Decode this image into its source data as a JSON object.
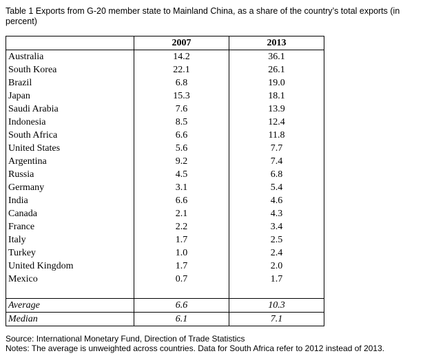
{
  "caption": "Table 1 Exports from G-20 member state to Mainland China, as a share of the country’s total exports (in percent)",
  "chart_data": {
    "type": "table",
    "title": "Table 1 Exports from G-20 member state to Mainland China, as a share of the country’s total exports (in percent)",
    "columns": [
      "",
      "2007",
      "2013"
    ],
    "rows": [
      {
        "country": "Australia",
        "y2007": "14.2",
        "y2013": "36.1"
      },
      {
        "country": "South Korea",
        "y2007": "22.1",
        "y2013": "26.1"
      },
      {
        "country": "Brazil",
        "y2007": "6.8",
        "y2013": "19.0"
      },
      {
        "country": "Japan",
        "y2007": "15.3",
        "y2013": "18.1"
      },
      {
        "country": "Saudi Arabia",
        "y2007": "7.6",
        "y2013": "13.9"
      },
      {
        "country": "Indonesia",
        "y2007": "8.5",
        "y2013": "12.4"
      },
      {
        "country": "South Africa",
        "y2007": "6.6",
        "y2013": "11.8"
      },
      {
        "country": "United States",
        "y2007": "5.6",
        "y2013": "7.7"
      },
      {
        "country": "Argentina",
        "y2007": "9.2",
        "y2013": "7.4"
      },
      {
        "country": "Russia",
        "y2007": "4.5",
        "y2013": "6.8"
      },
      {
        "country": "Germany",
        "y2007": "3.1",
        "y2013": "5.4"
      },
      {
        "country": "India",
        "y2007": "6.6",
        "y2013": "4.6"
      },
      {
        "country": "Canada",
        "y2007": "2.1",
        "y2013": "4.3"
      },
      {
        "country": "France",
        "y2007": "2.2",
        "y2013": "3.4"
      },
      {
        "country": "Italy",
        "y2007": "1.7",
        "y2013": "2.5"
      },
      {
        "country": "Turkey",
        "y2007": "1.0",
        "y2013": "2.4"
      },
      {
        "country": "United Kingdom",
        "y2007": "1.7",
        "y2013": "2.0"
      },
      {
        "country": "Mexico",
        "y2007": "0.7",
        "y2013": "1.7"
      }
    ],
    "summary": [
      {
        "label": "Average",
        "y2007": "6.6",
        "y2013": "10.3"
      },
      {
        "label": "Median",
        "y2007": "6.1",
        "y2013": "7.1"
      }
    ]
  },
  "source": "Source: International Monetary Fund,  Direction of Trade Statistics",
  "notes": "Notes: The average is unweighted across countries. Data for South Africa refer to 2012 instead of 2013."
}
